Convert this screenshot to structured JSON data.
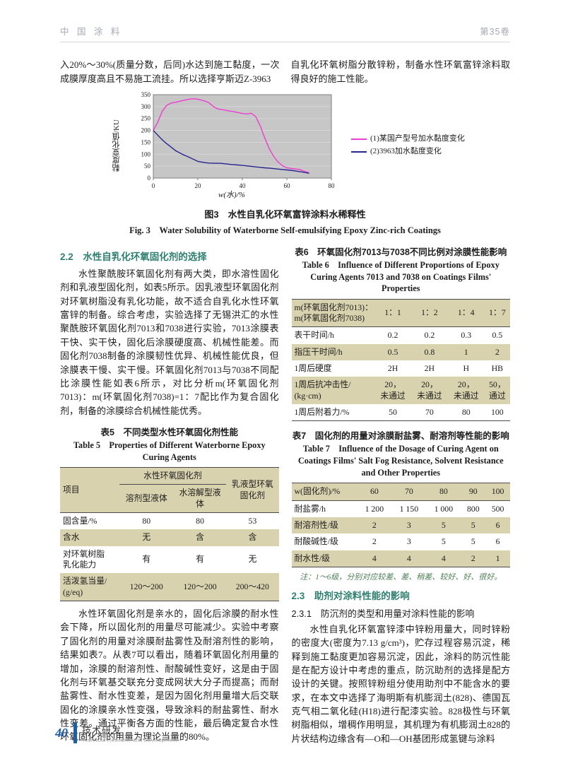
{
  "header": {
    "journal": "中 国 涂 料",
    "volume": "第35卷"
  },
  "intro": {
    "left": "入20%～30%(质量分数，后同)水达到施工黏度，一次成膜厚度高且不易施工流挂。所以选择亨斯迈Z-3963",
    "right": "自乳化环氧树脂分散锌粉，制备水性环氧富锌涂料取得良好的施工性能。"
  },
  "chart_data": {
    "type": "line",
    "title": "",
    "xlabel": "w(水)/%",
    "ylabel": "黏度变化值/KU",
    "xlim": [
      0,
      80
    ],
    "ylim": [
      0,
      350
    ],
    "xticks": [
      0,
      20,
      40,
      60,
      80
    ],
    "yticks": [
      0,
      50,
      100,
      150,
      200,
      250,
      300,
      350
    ],
    "plot_bg": "#c6c6c6",
    "grid": "horizontal",
    "legend_position": "right",
    "series": [
      {
        "name": "(1)某国产型号加水黏度变化",
        "color": "#f03cd2",
        "points": [
          [
            0,
            200
          ],
          [
            2,
            235
          ],
          [
            4,
            280
          ],
          [
            6,
            305
          ],
          [
            8,
            315
          ],
          [
            10,
            318
          ],
          [
            13,
            325
          ],
          [
            16,
            331
          ],
          [
            18,
            333
          ],
          [
            20,
            331
          ],
          [
            23,
            324
          ],
          [
            25,
            316
          ],
          [
            27,
            300
          ],
          [
            29,
            290
          ],
          [
            31,
            287
          ],
          [
            34,
            282
          ],
          [
            37,
            277
          ],
          [
            40,
            271
          ],
          [
            42,
            269
          ],
          [
            44,
            272
          ],
          [
            46,
            258
          ],
          [
            48,
            220
          ],
          [
            50,
            170
          ],
          [
            52,
            125
          ],
          [
            54,
            92
          ],
          [
            56,
            68
          ],
          [
            58,
            52
          ],
          [
            60,
            43
          ],
          [
            62,
            40
          ],
          [
            64,
            38
          ],
          [
            66,
            35
          ],
          [
            68,
            28
          ],
          [
            70,
            22
          ]
        ]
      },
      {
        "name": "(2)3963加水黏度变化",
        "color": "#26268f",
        "points": [
          [
            0,
            200
          ],
          [
            3,
            170
          ],
          [
            5,
            152
          ],
          [
            8,
            130
          ],
          [
            10,
            115
          ],
          [
            13,
            100
          ],
          [
            15,
            92
          ],
          [
            18,
            79
          ],
          [
            20,
            70
          ],
          [
            23,
            65
          ],
          [
            25,
            63
          ],
          [
            28,
            62
          ],
          [
            30,
            62
          ],
          [
            33,
            59
          ],
          [
            35,
            57
          ],
          [
            38,
            55
          ],
          [
            40,
            53
          ],
          [
            43,
            50
          ],
          [
            45,
            48
          ],
          [
            48,
            45
          ],
          [
            50,
            43
          ],
          [
            53,
            41
          ],
          [
            55,
            39
          ],
          [
            58,
            36
          ],
          [
            60,
            34
          ],
          [
            63,
            31
          ],
          [
            65,
            28
          ],
          [
            68,
            24
          ],
          [
            70,
            20
          ]
        ]
      }
    ]
  },
  "figure3": {
    "caption_cn": "图3　水性自乳化环氧富锌涂料水稀释性",
    "caption_en": "Fig. 3　Water Solubility of Waterborne Self-emulsifying Epoxy Zinc-rich Coatings"
  },
  "section_2_2": {
    "heading": "2.2　水性自乳化环氧固化剂的选择",
    "para": "水性聚酰胺环氧固化剂有两大类，即水溶性固化剂和乳液型固化剂，如表5所示。因乳液型环氧固化剂对环氧树脂没有乳化功能，故不适合自乳化水性环氧富锌的制备。综合考虑，实验选择了无锡洪汇的水性聚酰胺环氧固化剂7013和7038进行实验，7013涂膜表干快、实干快，固化后涂膜硬度高、机械性能差。而固化剂7038制备的涂膜韧性优异、机械性能优良，但涂膜表干慢、实干慢。环氧固化剂7013与7038不同配比涂膜性能如表6所示，对比分析m(环氧固化剂7013)：m(环氧固化剂7038)=1：7配比作为复合固化剂，制备的涂膜综合机械性能优秀。"
  },
  "table5": {
    "caption_cn": "表5　不同类型水性环氧固化剂性能",
    "caption_en": "Table 5　Properties of Different Waterborne Epoxy Curing Agents",
    "header": {
      "col1": "项目",
      "group": "水性环氧固化剂",
      "sub1": "溶剂型液体",
      "sub2": "水溶解型液体",
      "col4": "乳液型环氧\n固化剂"
    },
    "rows": [
      [
        "固含量/%",
        "80",
        "80",
        "53"
      ],
      [
        "含水",
        "无",
        "含",
        "含"
      ],
      [
        "对环氧树脂\n乳化能力",
        "有",
        "有",
        "无"
      ],
      [
        "活泼氢当量/\n(g/eq)",
        "120～200",
        "120～200",
        "200～420"
      ]
    ]
  },
  "para_after_table5": "水性环氧固化剂是亲水的，固化后涂膜的耐水性会下降，所以固化剂的用量尽可能减少。实验中考察了固化剂的用量对涂膜耐盐雾性及耐溶剂性的影响，结果如表7。从表7可以看出，随着环氧固化剂用量的增加，涂膜的耐溶剂性、耐酸碱性变好，这是由于固化剂与环氧基交联充分变成网状大分子而提高；而耐盐雾性、耐水性变差，是因为固化剂用量增大后交联固化的涂膜亲水性变强，导致涂料的耐盐雾性、耐水性变差。通过平衡各方面的性能，最后确定复合水性环氧固化剂的用量为理论当量的80%。",
  "table6": {
    "caption_cn": "表6　环氧固化剂7013与7038不同比例对涂膜性能影响",
    "caption_en": "Table 6　Influence of Different Proportions of Epoxy Curing Agents 7013 and 7038 on Coatings Films' Properties",
    "header": [
      "m(环氧固化剂7013)：\nm(环氧固化剂7038)",
      "1：1",
      "1：2",
      "1：4",
      "1：7"
    ],
    "rows": [
      [
        "表干时间/h",
        "0.2",
        "0.2",
        "0.3",
        "0.5"
      ],
      [
        "指压干时间/h",
        "0.5",
        "0.8",
        "1",
        "2"
      ],
      [
        "1周后硬度",
        "2H",
        "2H",
        "H",
        "HB"
      ],
      [
        "1周后抗冲击性/\n(kg·cm)",
        "20，\n未通过",
        "20，\n未通过",
        "20，\n未通过",
        "50，\n通过"
      ],
      [
        "1周后附着力/%",
        "50",
        "70",
        "80",
        "100"
      ]
    ]
  },
  "table7": {
    "caption_cn": "表7　固化剂的用量对涂膜耐盐雾、耐溶剂等性能的影响",
    "caption_en": "Table 7　Influence of the Dosage of Curing Agent on Coatings Films' Salt Fog Resistance, Solvent Resistance and Other Properties",
    "header": [
      "w(固化剂)/%",
      "60",
      "70",
      "80",
      "90",
      "100"
    ],
    "rows": [
      [
        "耐盐雾/h",
        "1 200",
        "1 150",
        "1 000",
        "800",
        "500"
      ],
      [
        "耐溶剂性/级",
        "2",
        "3",
        "5",
        "5",
        "6"
      ],
      [
        "耐酸碱性/级",
        "2",
        "3",
        "5",
        "5",
        "6"
      ],
      [
        "耐水性/级",
        "4",
        "4",
        "4",
        "2",
        "1"
      ]
    ],
    "note": "注：1～6级，分别对应较差、差、稍差、较好、好、很好。"
  },
  "section_2_3": {
    "heading": "2.3　助剂对涂料性能的影响",
    "sub_heading": "2.3.1　防沉剂的类型和用量对涂料性能的影响",
    "para": "水性自乳化环氧富锌漆中锌粉用量大，同时锌粉的密度大(密度为7.13 g/cm³)，贮存过程容易沉淀，稀释到施工黏度更加容易沉淀，因此，涂料的防沉性能是在配方设计中考虑的重点，防沉助剂的选择是配方设计的关键。按照锌粉组分使用助剂中不能含水的要求，在本文中选择了海明斯有机膨润土(828)、德国瓦克气相二氧化硅(H18)进行配漆实验。828极性与环氧树脂相似，增稠作用明显，其机理为有机膨润土828的片状结构边缘含有—O和—OH基团形成氢键与涂料"
  },
  "footer": {
    "page_number": "40",
    "section_cn": "技术研发",
    "section_en": "Technical Research and Development"
  }
}
